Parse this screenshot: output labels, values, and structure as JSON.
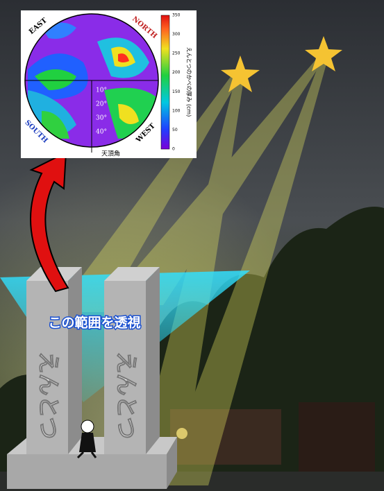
{
  "inset": {
    "directions": {
      "east": "EAST",
      "north": "NORTH",
      "south": "SOUTH",
      "west": "WEST"
    },
    "angle_labels": [
      "10°",
      "20°",
      "30°",
      "40°"
    ],
    "zenith_label": "天頂角",
    "colorbar": {
      "label": "えんとつのかべの厚み (cm)",
      "ticks": [
        0,
        50,
        100,
        150,
        200,
        250,
        300,
        350
      ]
    }
  },
  "callout": "この範囲を透視",
  "chimneys": [
    "えんとつ",
    "えんとつ"
  ]
}
